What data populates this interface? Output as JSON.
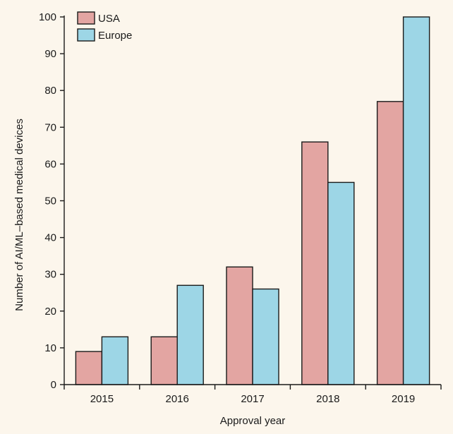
{
  "chart_data": {
    "type": "bar",
    "categories": [
      "2015",
      "2016",
      "2017",
      "2018",
      "2019"
    ],
    "series": [
      {
        "name": "USA",
        "values": [
          9,
          13,
          32,
          66,
          77
        ],
        "color": "#e3a5a2"
      },
      {
        "name": "Europe",
        "values": [
          13,
          27,
          26,
          55,
          100
        ],
        "color": "#9dd6e6"
      }
    ],
    "xlabel": "Approval year",
    "ylabel": "Number of AI/ML–based medical devices",
    "ylim": [
      0,
      100
    ],
    "yticks": [
      0,
      10,
      20,
      30,
      40,
      50,
      60,
      70,
      80,
      90,
      100
    ],
    "grid": false,
    "legend_position": "top-left"
  },
  "colors": {
    "background": "#fcf6ec",
    "axis": "#1a1a1a"
  }
}
